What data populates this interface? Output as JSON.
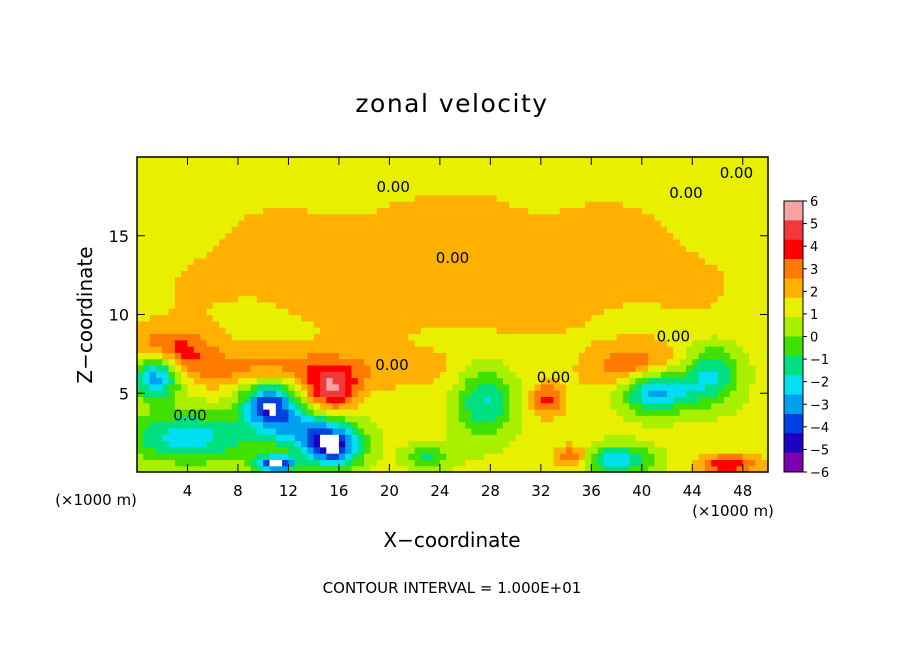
{
  "chart_data": {
    "type": "heatmap",
    "title": "zonal velocity",
    "xlabel": "X−coordinate",
    "ylabel": "Z−coordinate",
    "x_unit_left": "(×1000 m)",
    "x_unit_right": "(×1000 m)",
    "x_ticks": [
      4,
      8,
      12,
      16,
      20,
      24,
      28,
      32,
      36,
      40,
      44,
      48
    ],
    "y_ticks": [
      5,
      10,
      15
    ],
    "xlim": [
      0,
      50
    ],
    "ylim": [
      0,
      20
    ],
    "footer": "CONTOUR INTERVAL = 1.000E+01",
    "contour_labels": [
      {
        "text": "0.00",
        "x": 47.5,
        "y": 19.0
      },
      {
        "text": "0.00",
        "x": 20.3,
        "y": 18.1
      },
      {
        "text": "0.00",
        "x": 43.5,
        "y": 17.7
      },
      {
        "text": "0.00",
        "x": 25.0,
        "y": 13.6
      },
      {
        "text": "0.00",
        "x": 42.5,
        "y": 8.6
      },
      {
        "text": "0.00",
        "x": 33.0,
        "y": 6.0
      },
      {
        "text": "0.00",
        "x": 4.2,
        "y": 3.6
      },
      {
        "text": "0.00",
        "x": 20.2,
        "y": 6.8
      }
    ],
    "colorbar": {
      "levels": [
        6,
        5,
        4,
        3,
        2,
        1,
        0,
        -1,
        -2,
        -3,
        -4,
        -5,
        -6
      ],
      "colors": [
        "#f5a3a3",
        "#f03a3a",
        "#ff0000",
        "#ff7a00",
        "#ffb000",
        "#e8f000",
        "#a8f000",
        "#40e000",
        "#00e080",
        "#00e0f0",
        "#00a0f0",
        "#0040e0",
        "#2000c0",
        "#7a00b0"
      ]
    },
    "features": [
      {
        "kind": "blob",
        "x": 1.5,
        "y": 6.3,
        "rx": 2.2,
        "ry": 1.6,
        "v": -6.5,
        "note": "white"
      },
      {
        "kind": "blob",
        "x": 2.5,
        "y": 7.6,
        "rx": 3.5,
        "ry": 1.6,
        "v": 3.5
      },
      {
        "kind": "blob",
        "x": 4.0,
        "y": 2.2,
        "rx": 5.5,
        "ry": 1.8,
        "v": -4.0
      },
      {
        "kind": "blob",
        "x": 10.5,
        "y": 4.4,
        "rx": 2.4,
        "ry": 1.6,
        "v": -6.5
      },
      {
        "kind": "blob",
        "x": 15.5,
        "y": 5.2,
        "rx": 2.2,
        "ry": 1.5,
        "v": 4.0
      },
      {
        "kind": "blob",
        "x": 15.5,
        "y": 1.6,
        "rx": 2.6,
        "ry": 1.5,
        "v": -6.5
      },
      {
        "kind": "blob",
        "x": 11.0,
        "y": 0.5,
        "rx": 1.8,
        "ry": 0.6,
        "v": -6.5
      },
      {
        "kind": "blob",
        "x": 13.0,
        "y": 2.8,
        "rx": 3.5,
        "ry": 1.4,
        "v": -3.5
      },
      {
        "kind": "blob",
        "x": 27.5,
        "y": 4.5,
        "rx": 2.5,
        "ry": 2.5,
        "v": -3.5
      },
      {
        "kind": "blob",
        "x": 32.5,
        "y": 4.6,
        "rx": 1.5,
        "ry": 1.2,
        "v": 3.0
      },
      {
        "kind": "blob",
        "x": 41.0,
        "y": 5.4,
        "rx": 3.2,
        "ry": 1.6,
        "v": -6.5
      },
      {
        "kind": "blob",
        "x": 40.0,
        "y": 6.4,
        "rx": 4.0,
        "ry": 1.6,
        "v": 4.0
      },
      {
        "kind": "blob",
        "x": 45.5,
        "y": 6.3,
        "rx": 2.5,
        "ry": 2.0,
        "v": -3.5
      },
      {
        "kind": "blob",
        "x": 38.0,
        "y": 0.8,
        "rx": 3.0,
        "ry": 1.0,
        "v": -4.0
      },
      {
        "kind": "blob",
        "x": 47.0,
        "y": 0.5,
        "rx": 2.6,
        "ry": 0.7,
        "v": 3.5
      },
      {
        "kind": "blob",
        "x": 34.5,
        "y": 1.0,
        "rx": 1.5,
        "ry": 0.8,
        "v": 3.0
      },
      {
        "kind": "blob",
        "x": 23.0,
        "y": 1.0,
        "rx": 2.0,
        "ry": 0.8,
        "v": -2.5
      },
      {
        "kind": "band",
        "x": 12.0,
        "y": 6.5,
        "rx": 12.0,
        "ry": 1.5,
        "v": 2.0
      },
      {
        "kind": "band",
        "x": 25.0,
        "y": 13.0,
        "rx": 25.0,
        "ry": 5.0,
        "v": 1.5
      },
      {
        "kind": "band",
        "x": 35.0,
        "y": 18.5,
        "rx": 15.0,
        "ry": 1.5,
        "v": 0.2
      }
    ]
  }
}
